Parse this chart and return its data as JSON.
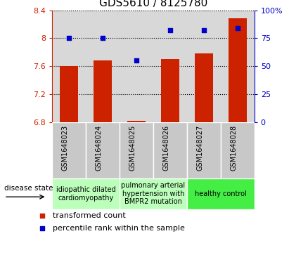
{
  "title": "GDS5610 / 8125780",
  "samples": [
    "GSM1648023",
    "GSM1648024",
    "GSM1648025",
    "GSM1648026",
    "GSM1648027",
    "GSM1648028"
  ],
  "transformed_count": [
    7.6,
    7.68,
    6.82,
    7.7,
    7.78,
    8.28
  ],
  "percentile_rank": [
    75,
    75,
    55,
    82,
    82,
    84
  ],
  "ylim_left": [
    6.8,
    8.4
  ],
  "ylim_right": [
    0,
    100
  ],
  "yticks_left": [
    6.8,
    7.2,
    7.6,
    8.0,
    8.4
  ],
  "yticks_right": [
    0,
    25,
    50,
    75,
    100
  ],
  "yticklabels_left": [
    "6.8",
    "7.2",
    "7.6",
    "8",
    "8.4"
  ],
  "yticklabels_right": [
    "0",
    "25",
    "50",
    "75",
    "100%"
  ],
  "bar_color": "#cc2200",
  "dot_color": "#0000cc",
  "bar_bottom": 6.8,
  "disease_groups": [
    {
      "label": "idiopathic dilated\ncardiomyopathy",
      "samples": [
        0,
        1
      ],
      "color": "#bbffbb"
    },
    {
      "label": "pulmonary arterial\nhypertension with\nBMPR2 mutation",
      "samples": [
        2,
        3
      ],
      "color": "#bbffbb"
    },
    {
      "label": "healthy control",
      "samples": [
        4,
        5
      ],
      "color": "#44ee44"
    }
  ],
  "legend_bar_label": "transformed count",
  "legend_dot_label": "percentile rank within the sample",
  "disease_state_label": "disease state",
  "background_color": "#ffffff",
  "plot_bg_color": "#d8d8d8",
  "sample_bg_color": "#c8c8c8",
  "grid_color": "#000000",
  "title_fontsize": 11,
  "tick_fontsize": 8,
  "label_fontsize": 8,
  "sample_label_fontsize": 7,
  "group_label_fontsize": 7,
  "legend_fontsize": 8
}
